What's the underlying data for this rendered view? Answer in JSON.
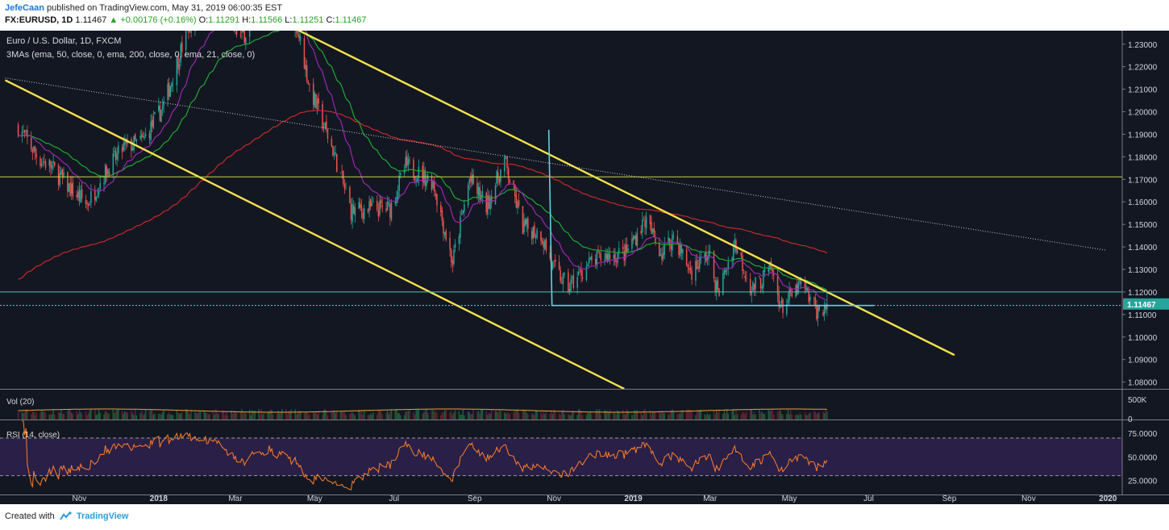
{
  "header": {
    "author": "JefeCaan",
    "published": "published on TradingView.com, May 31, 2019 06:00:35 EST",
    "symbol": "FX:EURUSD, 1D",
    "last": "1.11467",
    "change": "▲ +0.00176 (+0.16%)",
    "o_label": "O:",
    "o": "1.11291",
    "h_label": "H:",
    "h": "1.11566",
    "l_label": "L:",
    "l": "1.11251",
    "c_label": "C:",
    "c": "1.11467"
  },
  "footer": {
    "created_with": "Created with",
    "brand": "TradingView"
  },
  "chart_data": {
    "type": "candlestick",
    "title": "Euro / U.S. Dollar, 1D, FXCM",
    "indicator_label": "3MAs (ema, 50, close, 0, ema, 200, close, 0, ema, 21, close, 0)",
    "price_axis": [
      "1.23000",
      "1.22000",
      "1.21000",
      "1.20000",
      "1.19000",
      "1.18000",
      "1.17000",
      "1.16000",
      "1.15000",
      "1.14000",
      "1.13000",
      "1.12000",
      "1.11000",
      "1.10000",
      "1.09000",
      "1.08000"
    ],
    "ylim": [
      1.077,
      1.236
    ],
    "last_price_label": "1.11467",
    "last_price": 1.11467,
    "time_axis": [
      "Nov",
      "2018",
      "Mar",
      "May",
      "Jul",
      "Sep",
      "Nov",
      "2019",
      "Mar",
      "May",
      "Jul",
      "Sep",
      "Nov",
      "2020"
    ],
    "series_close": [
      [
        "2017-09-15",
        1.1935
      ],
      [
        "2017-10-01",
        1.179
      ],
      [
        "2017-10-10",
        1.176
      ],
      [
        "2017-10-26",
        1.165
      ],
      [
        "2017-11-07",
        1.159
      ],
      [
        "2017-11-22",
        1.174
      ],
      [
        "2017-12-05",
        1.184
      ],
      [
        "2017-12-20",
        1.187
      ],
      [
        "2018-01-05",
        1.203
      ],
      [
        "2018-01-24",
        1.238
      ],
      [
        "2018-02-15",
        1.25
      ],
      [
        "2018-03-05",
        1.233
      ],
      [
        "2018-03-27",
        1.245
      ],
      [
        "2018-04-17",
        1.239
      ],
      [
        "2018-04-27",
        1.211
      ],
      [
        "2018-05-15",
        1.183
      ],
      [
        "2018-05-29",
        1.156
      ],
      [
        "2018-06-14",
        1.157
      ],
      [
        "2018-06-28",
        1.157
      ],
      [
        "2018-07-10",
        1.176
      ],
      [
        "2018-07-31",
        1.169
      ],
      [
        "2018-08-15",
        1.133
      ],
      [
        "2018-08-28",
        1.17
      ],
      [
        "2018-09-10",
        1.158
      ],
      [
        "2018-09-24",
        1.178
      ],
      [
        "2018-10-08",
        1.149
      ],
      [
        "2018-10-22",
        1.146
      ],
      [
        "2018-10-31",
        1.131
      ],
      [
        "2018-11-12",
        1.122
      ],
      [
        "2018-11-27",
        1.132
      ],
      [
        "2018-12-10",
        1.136
      ],
      [
        "2018-12-26",
        1.137
      ],
      [
        "2019-01-10",
        1.152
      ],
      [
        "2019-01-23",
        1.137
      ],
      [
        "2019-02-01",
        1.145
      ],
      [
        "2019-02-14",
        1.129
      ],
      [
        "2019-02-28",
        1.137
      ],
      [
        "2019-03-07",
        1.119
      ],
      [
        "2019-03-20",
        1.142
      ],
      [
        "2019-04-02",
        1.121
      ],
      [
        "2019-04-17",
        1.13
      ],
      [
        "2019-04-25",
        1.113
      ],
      [
        "2019-05-10",
        1.123
      ],
      [
        "2019-05-23",
        1.111
      ],
      [
        "2019-05-30",
        1.11467
      ]
    ],
    "trendlines": [
      {
        "type": "channel-upper",
        "from": [
          "2018-04-05",
          1.24
        ],
        "to": [
          "2019-09-05",
          1.092
        ]
      },
      {
        "type": "channel-lower",
        "from": [
          "2017-09-05",
          1.214
        ],
        "to": [
          "2018-12-25",
          1.077
        ]
      },
      {
        "type": "horizontal",
        "price": 1.1711
      },
      {
        "type": "horizontal",
        "price": 1.12
      },
      {
        "type": "horizontal",
        "price": 1.114
      },
      {
        "type": "dotted-trend",
        "from": [
          "2017-09-05",
          1.215
        ],
        "to": [
          "2019-12-31",
          1.1385
        ]
      }
    ],
    "colors": {
      "up": "#26a69a",
      "down": "#ef5350",
      "upper_channel": "#f5e24b",
      "ema50": "#1fa832",
      "ema200": "#c62828",
      "ema21": "#9c27b0",
      "rsi": "#ff7f27",
      "accent": "#5fd3dc"
    },
    "volume": {
      "label": "Vol (20)",
      "axis": [
        "500K",
        "0"
      ]
    },
    "rsi": {
      "label": "RSI (14, close)",
      "axis": [
        "75.0000",
        "50.0000",
        "25.0000"
      ]
    }
  }
}
